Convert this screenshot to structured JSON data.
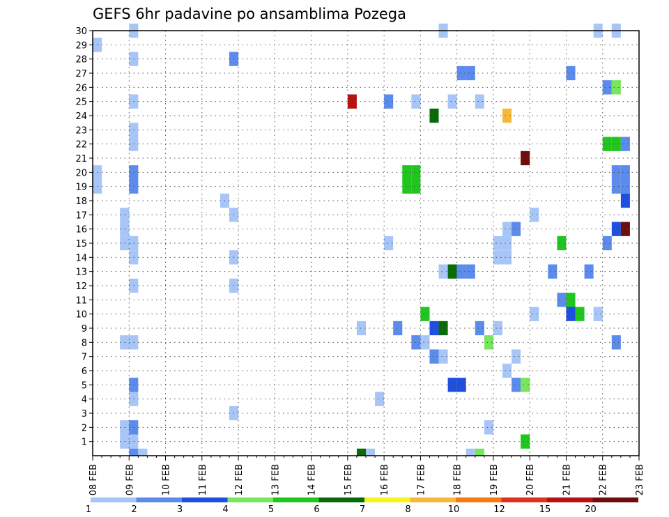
{
  "chart_data": {
    "type": "heatmap",
    "title": "GEFS 6hr padavine po ansamblima Pozega",
    "x_tick_labels": [
      "08 FEB",
      "09 FEB",
      "10 FEB",
      "11 FEB",
      "12 FEB",
      "13 FEB",
      "14 FEB",
      "15 FEB",
      "16 FEB",
      "17 FEB",
      "18 FEB",
      "19 FEB",
      "20 FEB",
      "21 FEB",
      "22 FEB",
      "23 FEB"
    ],
    "y_tick_labels": [
      "1",
      "2",
      "3",
      "4",
      "5",
      "6",
      "7",
      "8",
      "9",
      "10",
      "11",
      "12",
      "13",
      "14",
      "15",
      "16",
      "17",
      "18",
      "19",
      "20",
      "21",
      "22",
      "23",
      "24",
      "25",
      "26",
      "27",
      "28",
      "29",
      "30"
    ],
    "xlim": [
      0,
      60
    ],
    "ylim": [
      0,
      30
    ],
    "x_unit": "6-hour steps from 08 FEB 00Z",
    "y_unit": "ensemble member",
    "grid": true,
    "legend": {
      "position": "bottom",
      "thresholds": [
        "1",
        "2",
        "3",
        "4",
        "5",
        "6",
        "7",
        "8",
        "10",
        "12",
        "15",
        "20"
      ],
      "colors": [
        "#a7c5f7",
        "#5b8bec",
        "#1f4fe0",
        "#76e65a",
        "#20c51e",
        "#0a6a0a",
        "#f7f41b",
        "#f7b83a",
        "#f47a12",
        "#e0311a",
        "#b71212",
        "#6d0d0d"
      ]
    },
    "cells": [
      {
        "t": 4,
        "m": 30,
        "c": 0
      },
      {
        "t": 38,
        "m": 30,
        "c": 0
      },
      {
        "t": 55,
        "m": 30,
        "c": 0
      },
      {
        "t": 57,
        "m": 30,
        "c": 0
      },
      {
        "t": 0,
        "m": 29,
        "c": 0
      },
      {
        "t": 4,
        "m": 28,
        "c": 0
      },
      {
        "t": 15,
        "m": 28,
        "c": 1
      },
      {
        "t": 40,
        "m": 27,
        "c": 1
      },
      {
        "t": 41,
        "m": 27,
        "c": 1
      },
      {
        "t": 52,
        "m": 27,
        "c": 1
      },
      {
        "t": 56,
        "m": 26,
        "c": 1
      },
      {
        "t": 57,
        "m": 26,
        "c": 3
      },
      {
        "t": 4,
        "m": 25,
        "c": 0
      },
      {
        "t": 28,
        "m": 25,
        "c": 10
      },
      {
        "t": 32,
        "m": 25,
        "c": 1
      },
      {
        "t": 35,
        "m": 25,
        "c": 0
      },
      {
        "t": 39,
        "m": 25,
        "c": 0
      },
      {
        "t": 42,
        "m": 25,
        "c": 0
      },
      {
        "t": 37,
        "m": 24,
        "c": 5
      },
      {
        "t": 45,
        "m": 24,
        "c": 7
      },
      {
        "t": 4,
        "m": 23,
        "c": 0
      },
      {
        "t": 4,
        "m": 22,
        "c": 0
      },
      {
        "t": 56,
        "m": 22,
        "c": 4
      },
      {
        "t": 57,
        "m": 22,
        "c": 4
      },
      {
        "t": 58,
        "m": 22,
        "c": 1
      },
      {
        "t": 47,
        "m": 21,
        "c": 11
      },
      {
        "t": 0,
        "m": 20,
        "c": 0
      },
      {
        "t": 4,
        "m": 20,
        "c": 1
      },
      {
        "t": 34,
        "m": 20,
        "c": 4
      },
      {
        "t": 35,
        "m": 20,
        "c": 4
      },
      {
        "t": 57,
        "m": 20,
        "c": 1
      },
      {
        "t": 58,
        "m": 20,
        "c": 1
      },
      {
        "t": 0,
        "m": 19,
        "c": 0
      },
      {
        "t": 4,
        "m": 19,
        "c": 1
      },
      {
        "t": 34,
        "m": 19,
        "c": 4
      },
      {
        "t": 35,
        "m": 19,
        "c": 4
      },
      {
        "t": 57,
        "m": 19,
        "c": 1
      },
      {
        "t": 58,
        "m": 19,
        "c": 1
      },
      {
        "t": 14,
        "m": 18,
        "c": 0
      },
      {
        "t": 58,
        "m": 18,
        "c": 2
      },
      {
        "t": 3,
        "m": 17,
        "c": 0
      },
      {
        "t": 15,
        "m": 17,
        "c": 0
      },
      {
        "t": 48,
        "m": 17,
        "c": 0
      },
      {
        "t": 3,
        "m": 16,
        "c": 0
      },
      {
        "t": 45,
        "m": 16,
        "c": 0
      },
      {
        "t": 46,
        "m": 16,
        "c": 1
      },
      {
        "t": 57,
        "m": 16,
        "c": 2
      },
      {
        "t": 58,
        "m": 16,
        "c": 11
      },
      {
        "t": 3,
        "m": 15,
        "c": 0
      },
      {
        "t": 4,
        "m": 15,
        "c": 0
      },
      {
        "t": 32,
        "m": 15,
        "c": 0
      },
      {
        "t": 44,
        "m": 15,
        "c": 0
      },
      {
        "t": 45,
        "m": 15,
        "c": 0
      },
      {
        "t": 51,
        "m": 15,
        "c": 4
      },
      {
        "t": 56,
        "m": 15,
        "c": 1
      },
      {
        "t": 4,
        "m": 14,
        "c": 0
      },
      {
        "t": 15,
        "m": 14,
        "c": 0
      },
      {
        "t": 44,
        "m": 14,
        "c": 0
      },
      {
        "t": 45,
        "m": 14,
        "c": 0
      },
      {
        "t": 38,
        "m": 13,
        "c": 0
      },
      {
        "t": 39,
        "m": 13,
        "c": 5
      },
      {
        "t": 40,
        "m": 13,
        "c": 1
      },
      {
        "t": 41,
        "m": 13,
        "c": 1
      },
      {
        "t": 50,
        "m": 13,
        "c": 1
      },
      {
        "t": 54,
        "m": 13,
        "c": 1
      },
      {
        "t": 4,
        "m": 12,
        "c": 0
      },
      {
        "t": 15,
        "m": 12,
        "c": 0
      },
      {
        "t": 51,
        "m": 11,
        "c": 1
      },
      {
        "t": 52,
        "m": 11,
        "c": 4
      },
      {
        "t": 36,
        "m": 10,
        "c": 4
      },
      {
        "t": 48,
        "m": 10,
        "c": 0
      },
      {
        "t": 52,
        "m": 10,
        "c": 2
      },
      {
        "t": 53,
        "m": 10,
        "c": 4
      },
      {
        "t": 55,
        "m": 10,
        "c": 0
      },
      {
        "t": 29,
        "m": 9,
        "c": 0
      },
      {
        "t": 33,
        "m": 9,
        "c": 1
      },
      {
        "t": 37,
        "m": 9,
        "c": 2
      },
      {
        "t": 38,
        "m": 9,
        "c": 5
      },
      {
        "t": 42,
        "m": 9,
        "c": 1
      },
      {
        "t": 44,
        "m": 9,
        "c": 0
      },
      {
        "t": 3,
        "m": 8,
        "c": 0
      },
      {
        "t": 4,
        "m": 8,
        "c": 0
      },
      {
        "t": 35,
        "m": 8,
        "c": 1
      },
      {
        "t": 36,
        "m": 8,
        "c": 0
      },
      {
        "t": 43,
        "m": 8,
        "c": 3
      },
      {
        "t": 57,
        "m": 8,
        "c": 1
      },
      {
        "t": 37,
        "m": 7,
        "c": 1
      },
      {
        "t": 38,
        "m": 7,
        "c": 0
      },
      {
        "t": 46,
        "m": 7,
        "c": 0
      },
      {
        "t": 45,
        "m": 6,
        "c": 0
      },
      {
        "t": 4,
        "m": 5,
        "c": 1
      },
      {
        "t": 39,
        "m": 5,
        "c": 2
      },
      {
        "t": 40,
        "m": 5,
        "c": 2
      },
      {
        "t": 46,
        "m": 5,
        "c": 1
      },
      {
        "t": 47,
        "m": 5,
        "c": 3
      },
      {
        "t": 4,
        "m": 4,
        "c": 0
      },
      {
        "t": 31,
        "m": 4,
        "c": 0
      },
      {
        "t": 15,
        "m": 3,
        "c": 0
      },
      {
        "t": 3,
        "m": 2,
        "c": 0
      },
      {
        "t": 4,
        "m": 2,
        "c": 1
      },
      {
        "t": 43,
        "m": 2,
        "c": 0
      },
      {
        "t": 3,
        "m": 1,
        "c": 0
      },
      {
        "t": 4,
        "m": 1,
        "c": 0
      },
      {
        "t": 47,
        "m": 1,
        "c": 4
      },
      {
        "t": 4,
        "m": 0,
        "c": 1
      },
      {
        "t": 5,
        "m": 0,
        "c": 0
      },
      {
        "t": 29,
        "m": 0,
        "c": 5
      },
      {
        "t": 30,
        "m": 0,
        "c": 0
      },
      {
        "t": 41,
        "m": 0,
        "c": 0
      },
      {
        "t": 42,
        "m": 0,
        "c": 3
      }
    ]
  }
}
